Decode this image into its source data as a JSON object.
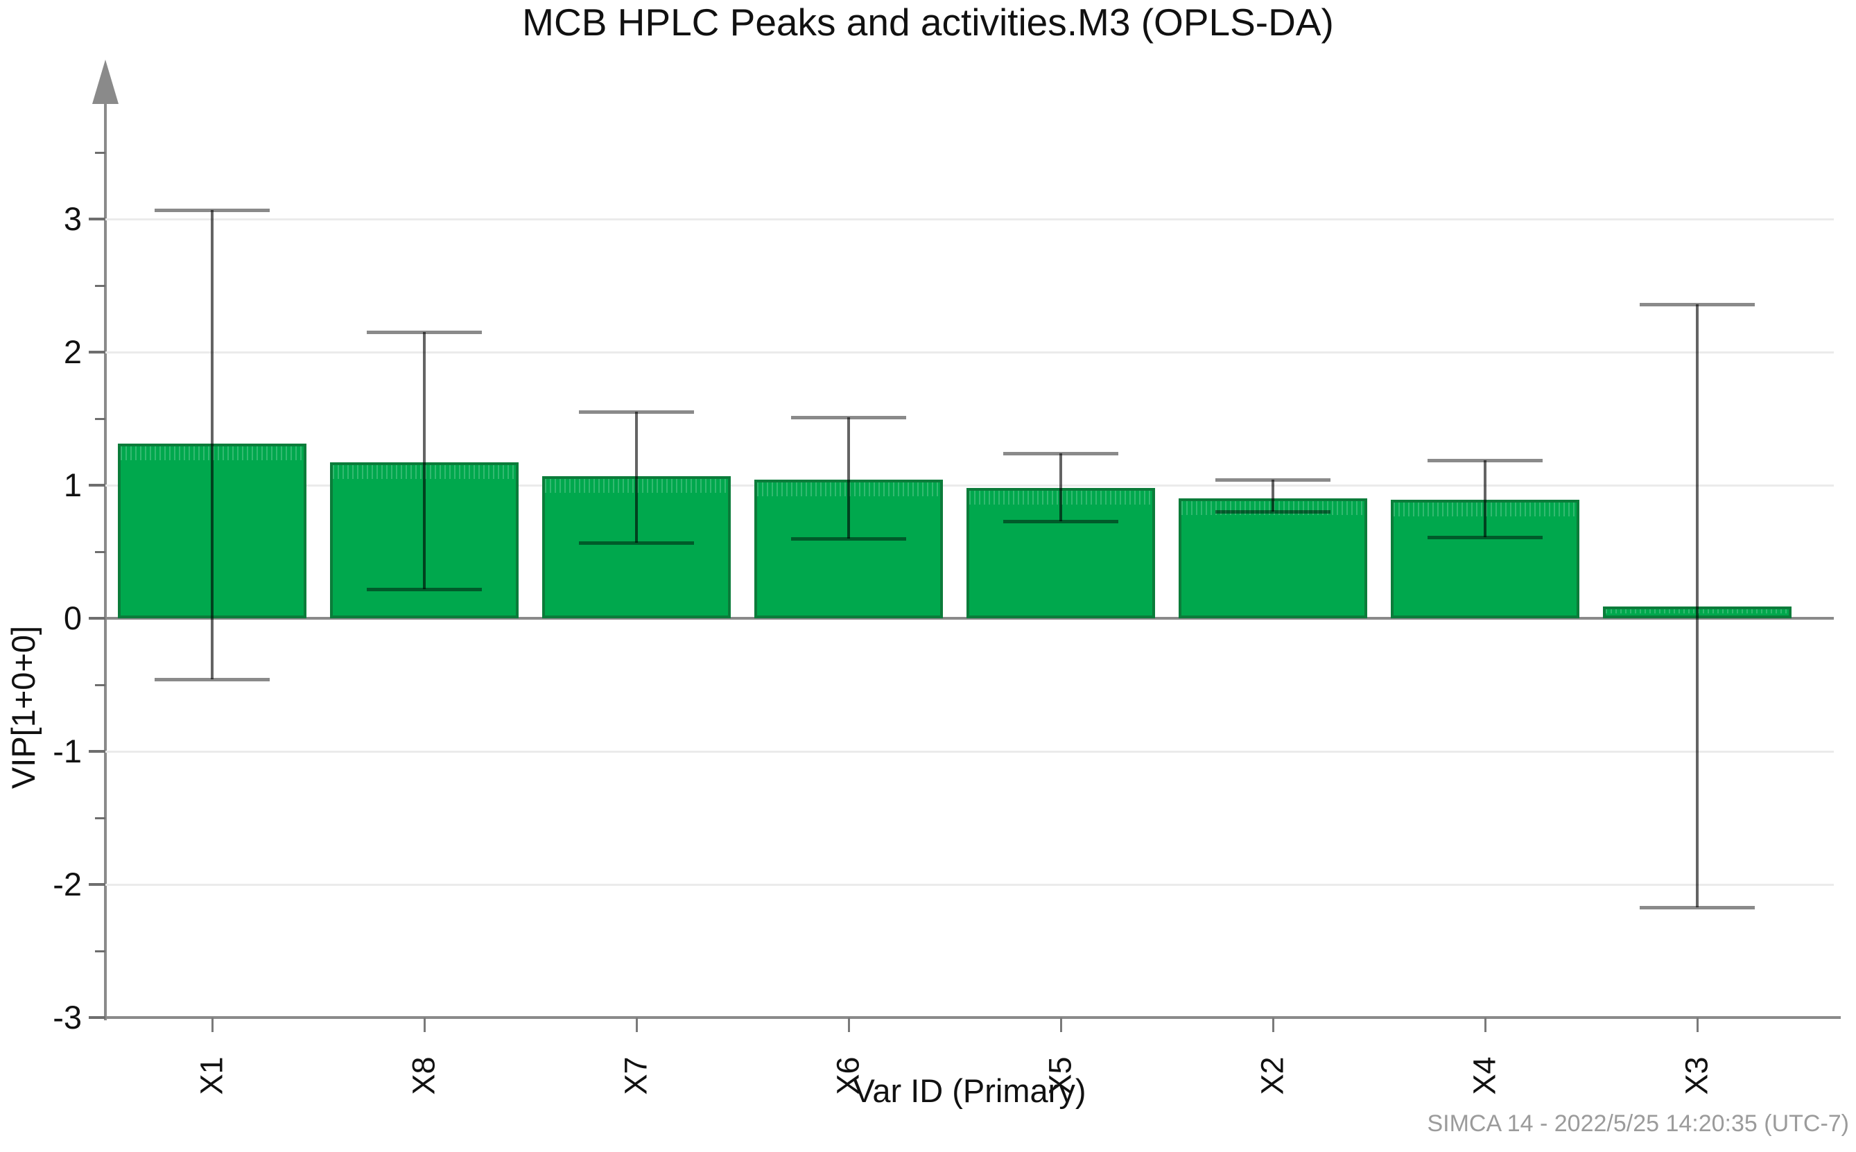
{
  "page": {
    "background": "#ffffff"
  },
  "chart_data": {
    "type": "bar",
    "title": "MCB HPLC Peaks and activities.M3 (OPLS-DA)",
    "xlabel": "Var ID (Primary)",
    "ylabel": "VIP[1+0+0]",
    "categories": [
      "X1",
      "X8",
      "X7",
      "X6",
      "X5",
      "X2",
      "X4",
      "X3"
    ],
    "values": [
      1.31,
      1.17,
      1.07,
      1.04,
      0.98,
      0.9,
      0.89,
      0.09
    ],
    "error_high": [
      3.07,
      2.15,
      1.55,
      1.51,
      1.24,
      1.04,
      1.19,
      2.36
    ],
    "error_low": [
      -0.46,
      0.22,
      0.57,
      0.6,
      0.73,
      0.8,
      0.61,
      -2.17
    ],
    "ylim": [
      -3,
      3.85
    ],
    "yticks": [
      -3,
      -2,
      -1,
      0,
      1,
      2,
      3
    ],
    "minor_yticks": [
      -2.5,
      -1.5,
      -0.5,
      0.5,
      1.5,
      2.5,
      3.5
    ],
    "grid": "horizontal-on",
    "legend_position": "none",
    "bar_color": "#00a84d",
    "bar_border_color": "#0b7c3a",
    "error_line_color": "#646464",
    "error_cap_color": "#8a8a8a",
    "axis_color": "#8a8a8a",
    "gridline_color": "#ebebeb",
    "footer": "SIMCA 14 - 2022/5/25 14:20:35 (UTC-7)"
  }
}
